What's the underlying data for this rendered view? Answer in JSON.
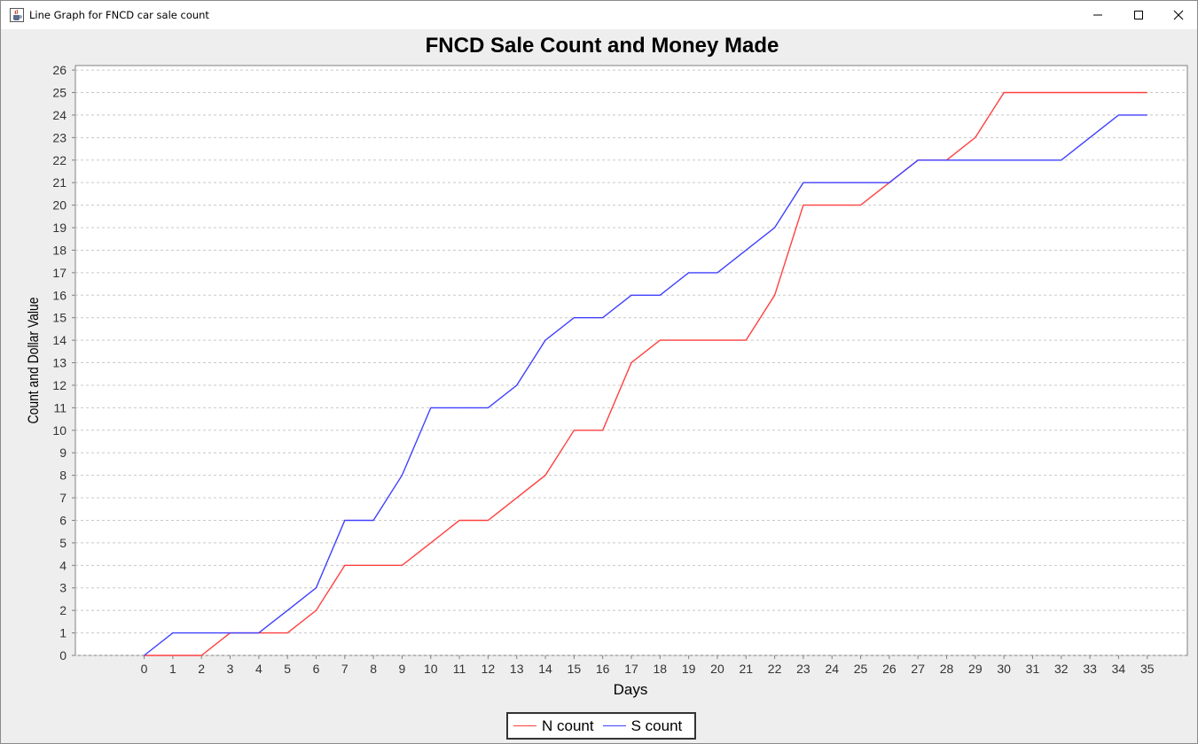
{
  "window": {
    "title": "Line Graph for FNCD car sale count",
    "icon": "java-coffee-cup-icon"
  },
  "colors": {
    "n_series": "#ff4040",
    "s_series": "#4040ff",
    "grid": "#c8c8c8",
    "plot_background": "#ffffff",
    "window_background": "#eeeeee"
  },
  "chart_data": {
    "type": "line",
    "title": "FNCD Sale Count and Money Made",
    "xlabel": "Days",
    "ylabel": "Count and Dollar Value",
    "x": [
      0,
      1,
      2,
      3,
      4,
      5,
      6,
      7,
      8,
      9,
      10,
      11,
      12,
      13,
      14,
      15,
      16,
      17,
      18,
      19,
      20,
      21,
      22,
      23,
      24,
      25,
      26,
      27,
      28,
      29,
      30,
      31,
      32,
      33,
      34,
      35
    ],
    "xlim": [
      -2.4,
      36.4
    ],
    "ylim": [
      0,
      26.2
    ],
    "yticks": [
      0,
      1,
      2,
      3,
      4,
      5,
      6,
      7,
      8,
      9,
      10,
      11,
      12,
      13,
      14,
      15,
      16,
      17,
      18,
      19,
      20,
      21,
      22,
      23,
      24,
      25,
      26
    ],
    "grid": true,
    "legend_position": "bottom-center",
    "series": [
      {
        "name": "N count",
        "color": "#ff4040",
        "values": [
          0,
          0,
          0,
          1,
          1,
          1,
          2,
          4,
          4,
          4,
          5,
          6,
          6,
          7,
          8,
          10,
          10,
          13,
          14,
          14,
          14,
          14,
          16,
          20,
          20,
          20,
          21,
          22,
          22,
          23,
          25,
          25,
          25,
          25,
          25,
          25
        ]
      },
      {
        "name": "S count",
        "color": "#4040ff",
        "values": [
          0,
          1,
          1,
          1,
          1,
          2,
          3,
          6,
          6,
          8,
          11,
          11,
          11,
          12,
          14,
          15,
          15,
          16,
          16,
          17,
          17,
          18,
          19,
          21,
          21,
          21,
          21,
          22,
          22,
          22,
          22,
          22,
          22,
          23,
          24,
          24
        ]
      }
    ]
  }
}
